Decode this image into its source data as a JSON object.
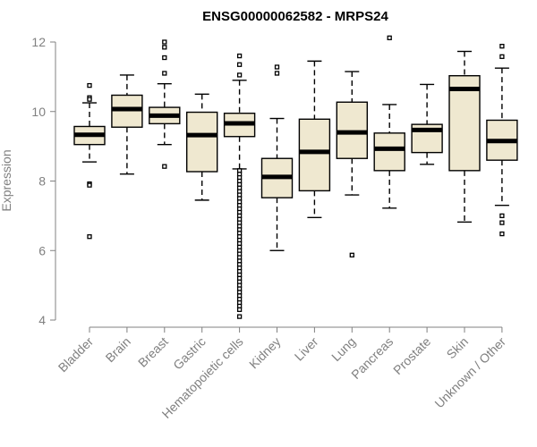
{
  "chart_data": {
    "type": "boxplot",
    "title": "ENSG00000062582 - MRPS24",
    "xlabel": "",
    "ylabel": "Expression",
    "ylim": [
      4,
      12
    ],
    "yticks": [
      4,
      6,
      8,
      10,
      12
    ],
    "categories": [
      "Bladder",
      "Brain",
      "Breast",
      "Gastric",
      "Hematopoietic cells",
      "Kidney",
      "Liver",
      "Lung",
      "Pancreas",
      "Prostate",
      "Skin",
      "Unknown / Other"
    ],
    "box_fill": "#efe8d0",
    "median_color": "#000000",
    "series": [
      {
        "name": "Bladder",
        "whisker_low": 8.55,
        "q1": 9.05,
        "median": 9.33,
        "q3": 9.57,
        "whisker_high": 10.25,
        "outliers": [
          10.75,
          10.4,
          10.35,
          7.92,
          7.88,
          6.4
        ]
      },
      {
        "name": "Brain",
        "whisker_low": 8.2,
        "q1": 9.55,
        "median": 10.07,
        "q3": 10.47,
        "whisker_high": 11.05,
        "outliers": []
      },
      {
        "name": "Breast",
        "whisker_low": 9.05,
        "q1": 9.65,
        "median": 9.88,
        "q3": 10.12,
        "whisker_high": 10.8,
        "outliers": [
          12.0,
          11.85,
          11.55,
          11.1,
          8.42
        ]
      },
      {
        "name": "Gastric",
        "whisker_low": 7.45,
        "q1": 8.27,
        "median": 9.32,
        "q3": 9.98,
        "whisker_high": 10.5,
        "outliers": []
      },
      {
        "name": "Hematopoietic cells",
        "whisker_low": 8.35,
        "q1": 9.28,
        "median": 9.66,
        "q3": 9.95,
        "whisker_high": 10.9,
        "outliers": [
          11.6,
          11.35,
          11.05,
          8.3,
          8.2,
          8.1,
          8.0,
          7.9,
          7.8,
          7.7,
          7.6,
          7.5,
          7.4,
          7.3,
          7.2,
          7.1,
          7.0,
          6.9,
          6.8,
          6.7,
          6.6,
          6.5,
          6.4,
          6.3,
          6.2,
          6.1,
          6.0,
          5.9,
          5.8,
          5.7,
          5.6,
          5.5,
          5.4,
          5.3,
          5.2,
          5.1,
          5.0,
          4.9,
          4.8,
          4.7,
          4.6,
          4.5,
          4.4,
          4.3,
          4.1
        ]
      },
      {
        "name": "Kidney",
        "whisker_low": 6.0,
        "q1": 7.52,
        "median": 8.12,
        "q3": 8.65,
        "whisker_high": 9.8,
        "outliers": [
          11.28,
          11.1
        ]
      },
      {
        "name": "Liver",
        "whisker_low": 6.95,
        "q1": 7.72,
        "median": 8.84,
        "q3": 9.78,
        "whisker_high": 11.45,
        "outliers": []
      },
      {
        "name": "Lung",
        "whisker_low": 7.6,
        "q1": 8.65,
        "median": 9.4,
        "q3": 10.27,
        "whisker_high": 11.15,
        "outliers": [
          5.87
        ]
      },
      {
        "name": "Pancreas",
        "whisker_low": 7.22,
        "q1": 8.3,
        "median": 8.93,
        "q3": 9.38,
        "whisker_high": 10.2,
        "outliers": [
          12.12
        ]
      },
      {
        "name": "Prostate",
        "whisker_low": 8.48,
        "q1": 8.82,
        "median": 9.47,
        "q3": 9.63,
        "whisker_high": 10.78,
        "outliers": []
      },
      {
        "name": "Skin",
        "whisker_low": 6.82,
        "q1": 8.3,
        "median": 10.65,
        "q3": 11.03,
        "whisker_high": 11.73,
        "outliers": []
      },
      {
        "name": "Unknown / Other",
        "whisker_low": 7.3,
        "q1": 8.6,
        "median": 9.15,
        "q3": 9.75,
        "whisker_high": 11.25,
        "outliers": [
          11.88,
          11.58,
          7.0,
          6.8,
          6.48
        ]
      }
    ]
  }
}
